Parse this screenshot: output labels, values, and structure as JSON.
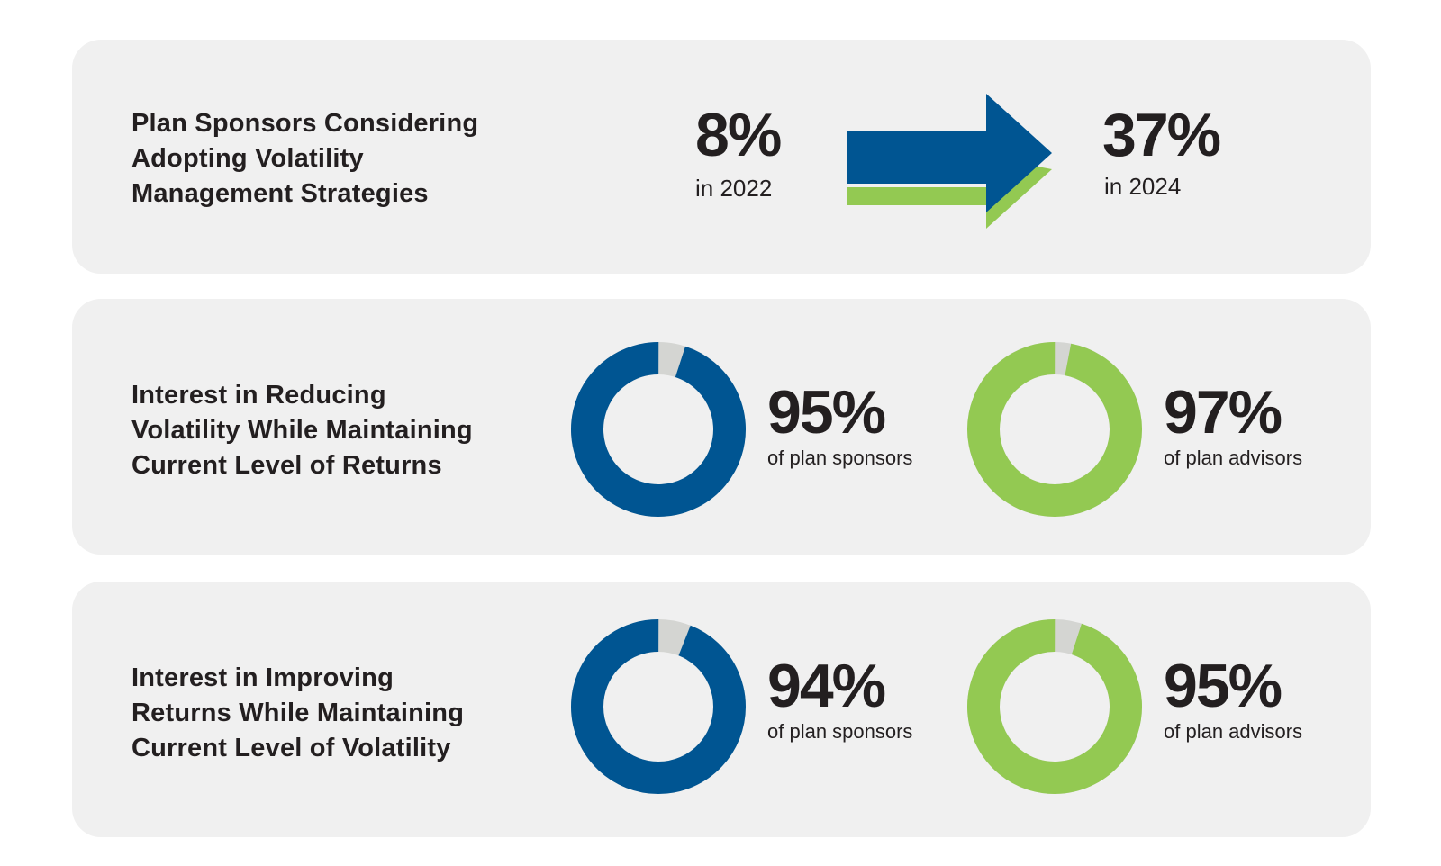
{
  "colors": {
    "panel_bg": "#f0f0f0",
    "blue": "#005592",
    "green": "#93c952",
    "remainder": "#d4d5d2",
    "text": "#231f20"
  },
  "rows": [
    {
      "label": "Plan Sponsors Considering\nAdopting Volatility\nManagement Strategies",
      "from": {
        "value": "8%",
        "caption": "in 2022"
      },
      "to": {
        "value": "37%",
        "caption": "in 2024"
      },
      "arrow_icon": "right-arrow-icon"
    },
    {
      "label": "Interest in Reducing\nVolatility While Maintaining\nCurrent Level of Returns",
      "sponsors": {
        "value": "95%",
        "caption": "of plan sponsors"
      },
      "advisors": {
        "value": "97%",
        "caption": "of plan advisors"
      }
    },
    {
      "label": "Interest in Improving\nReturns While Maintaining\nCurrent Level of Volatility",
      "sponsors": {
        "value": "94%",
        "caption": "of plan sponsors"
      },
      "advisors": {
        "value": "95%",
        "caption": "of plan advisors"
      }
    }
  ],
  "chart_data": [
    {
      "type": "table",
      "title": "Plan Sponsors Considering Adopting Volatility Management Strategies",
      "categories": [
        "2022",
        "2024"
      ],
      "values": [
        8,
        37
      ],
      "unit": "%"
    },
    {
      "type": "pie",
      "title": "Interest in Reducing Volatility While Maintaining Current Level of Returns",
      "series": [
        {
          "name": "plan sponsors",
          "value": 95,
          "color": "#005592"
        },
        {
          "name": "plan advisors",
          "value": 97,
          "color": "#93c952"
        }
      ],
      "unit": "%"
    },
    {
      "type": "pie",
      "title": "Interest in Improving Returns While Maintaining Current Level of Volatility",
      "series": [
        {
          "name": "plan sponsors",
          "value": 94,
          "color": "#005592"
        },
        {
          "name": "plan advisors",
          "value": 95,
          "color": "#93c952"
        }
      ],
      "unit": "%"
    }
  ]
}
